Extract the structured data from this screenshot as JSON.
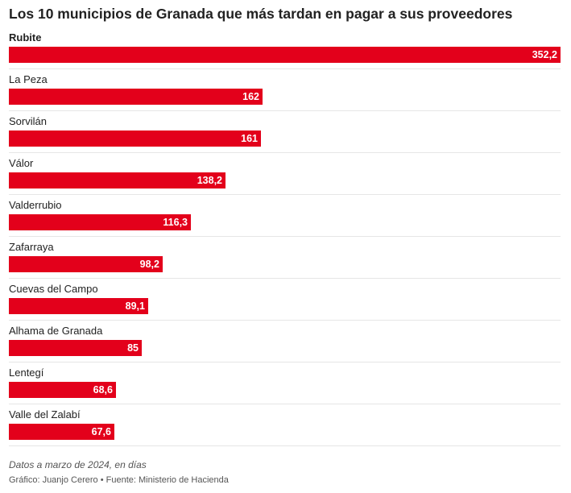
{
  "title": "Los 10 municipios de Granada que más tardan en pagar a sus proveedores",
  "note": "Datos a marzo de 2024, en días",
  "source": "Gráfico: Juanjo Cerero • Fuente: Ministerio de Hacienda",
  "colors": {
    "bar": "#e3001b",
    "value_text": "#ffffff"
  },
  "chart_data": {
    "type": "bar",
    "orientation": "horizontal",
    "categories": [
      "Rubite",
      "La Peza",
      "Sorvilán",
      "Válor",
      "Valderrubio",
      "Zafarraya",
      "Cuevas del Campo",
      "Alhama de Granada",
      "Lentegí",
      "Valle del Zalabí"
    ],
    "values": [
      352.2,
      162,
      161,
      138.2,
      116.3,
      98.2,
      89.1,
      85,
      68.6,
      67.6
    ],
    "value_labels": [
      "352,2",
      "162",
      "161",
      "138,2",
      "116,3",
      "98,2",
      "89,1",
      "85",
      "68,6",
      "67,6"
    ],
    "xlim": [
      0,
      352.2
    ],
    "grid": false,
    "legend": "none"
  }
}
